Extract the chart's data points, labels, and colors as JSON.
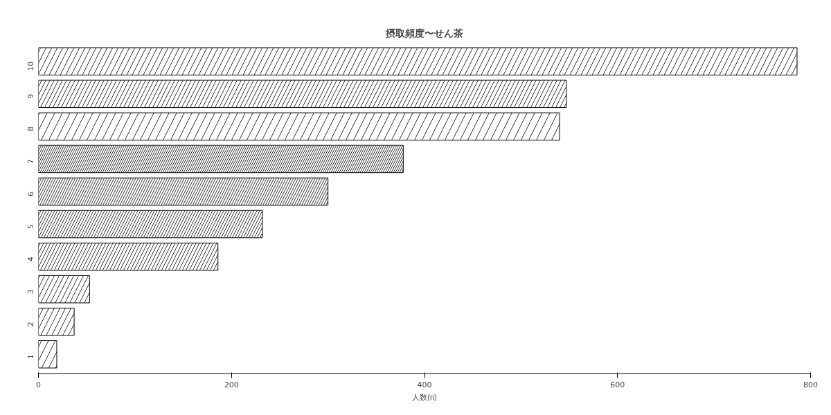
{
  "chart_data": {
    "type": "bar",
    "orientation": "horizontal",
    "title": "摂取頻度〜せん茶",
    "xlabel": "人数(n)",
    "categories": [
      "10",
      "9",
      "8",
      "7",
      "6",
      "5",
      "4",
      "3",
      "2",
      "1"
    ],
    "values": [
      786,
      547,
      540,
      378,
      300,
      232,
      186,
      53,
      37,
      19
    ],
    "color": "#ffffff",
    "xlim": [
      0,
      800
    ],
    "xticks": [
      0,
      200,
      400,
      600,
      800
    ],
    "grid": false
  }
}
